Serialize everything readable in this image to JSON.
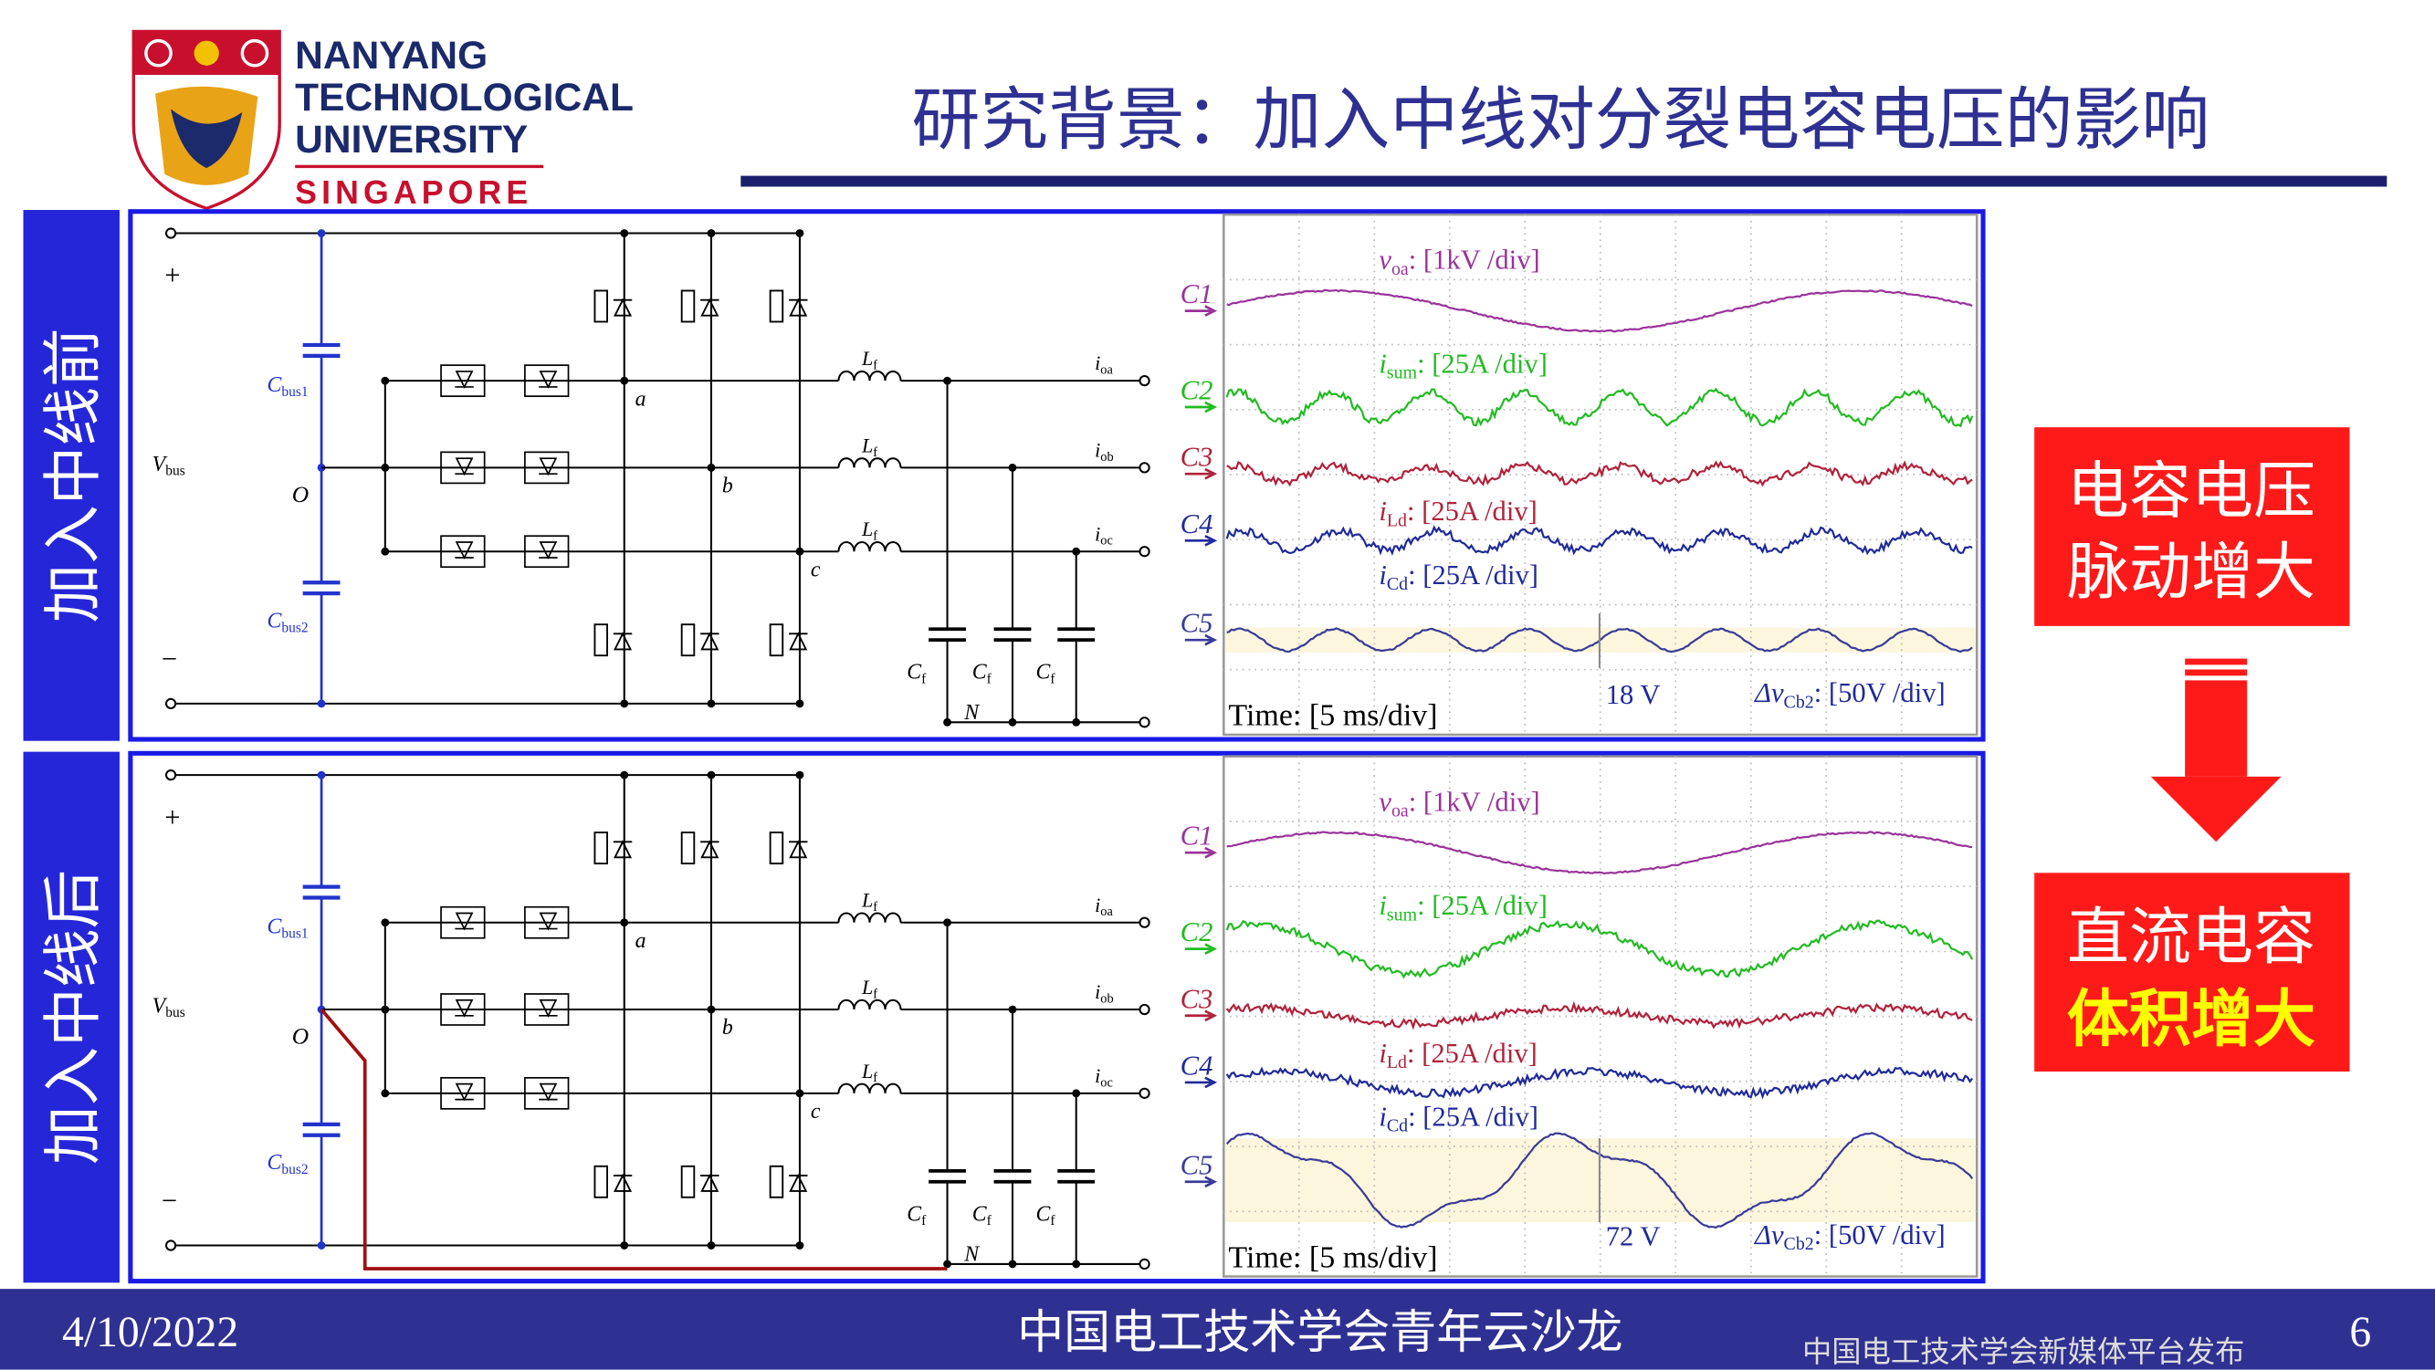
{
  "header": {
    "logo": [
      "NANYANG",
      "TECHNOLOGICAL",
      "UNIVERSITY"
    ],
    "logo_sub": "SINGAPORE",
    "title": "研究背景：加入中线对分裂电容电压的影响"
  },
  "panels": [
    {
      "label": "加入中线前",
      "circuit": {
        "plus": "+",
        "minus": "−",
        "vbus": {
          "main": "V",
          "sub": "bus"
        },
        "cbus1": {
          "main": "C",
          "sub": "bus1"
        },
        "cbus2": {
          "main": "C",
          "sub": "bus2"
        },
        "o": "O",
        "phases": [
          "a",
          "b",
          "c"
        ],
        "lf": [
          {
            "main": "L",
            "sub": "f"
          },
          {
            "main": "L",
            "sub": "f"
          },
          {
            "main": "L",
            "sub": "f"
          }
        ],
        "io": [
          {
            "main": "i",
            "sub": "oa"
          },
          {
            "main": "i",
            "sub": "ob"
          },
          {
            "main": "i",
            "sub": "oc"
          }
        ],
        "cf": [
          {
            "main": "C",
            "sub": "f"
          },
          {
            "main": "C",
            "sub": "f"
          },
          {
            "main": "C",
            "sub": "f"
          }
        ],
        "n": "N"
      },
      "scope": {
        "channels": [
          {
            "name": "C1",
            "label": {
              "main": "v",
              "sub": "oa",
              "rest": ": [1kV /div]"
            }
          },
          {
            "name": "C2",
            "label": {
              "main": "i",
              "sub": "sum",
              "rest": ": [25A /div]"
            }
          },
          {
            "name": "C3",
            "label": {
              "main": "i",
              "sub": "Ld",
              "rest": ": [25A /div]"
            }
          },
          {
            "name": "C4",
            "label": {
              "main": "i",
              "sub": "Cd",
              "rest": ": [25A /div]"
            }
          },
          {
            "name": "C5",
            "label": {
              "main": "Δv",
              "sub": "Cb2",
              "rest": ": [50V /div]"
            }
          }
        ],
        "time": "Time: [5 ms/div]",
        "ripple": "18 V"
      }
    },
    {
      "label": "加入中线后",
      "circuit": {
        "plus": "+",
        "minus": "−",
        "vbus": {
          "main": "V",
          "sub": "bus"
        },
        "cbus1": {
          "main": "C",
          "sub": "bus1"
        },
        "cbus2": {
          "main": "C",
          "sub": "bus2"
        },
        "o": "O",
        "phases": [
          "a",
          "b",
          "c"
        ],
        "lf": [
          {
            "main": "L",
            "sub": "f"
          },
          {
            "main": "L",
            "sub": "f"
          },
          {
            "main": "L",
            "sub": "f"
          }
        ],
        "io": [
          {
            "main": "i",
            "sub": "oa"
          },
          {
            "main": "i",
            "sub": "ob"
          },
          {
            "main": "i",
            "sub": "oc"
          }
        ],
        "cf": [
          {
            "main": "C",
            "sub": "f"
          },
          {
            "main": "C",
            "sub": "f"
          },
          {
            "main": "C",
            "sub": "f"
          }
        ],
        "n": "N"
      },
      "scope": {
        "channels": [
          {
            "name": "C1",
            "label": {
              "main": "v",
              "sub": "oa",
              "rest": ": [1kV /div]"
            }
          },
          {
            "name": "C2",
            "label": {
              "main": "i",
              "sub": "sum",
              "rest": ": [25A /div]"
            }
          },
          {
            "name": "C3",
            "label": {
              "main": "i",
              "sub": "Ld",
              "rest": ": [25A /div]"
            }
          },
          {
            "name": "C4",
            "label": {
              "main": "i",
              "sub": "Cd",
              "rest": ": [25A /div]"
            }
          },
          {
            "name": "C5",
            "label": {
              "main": "Δv",
              "sub": "Cb2",
              "rest": ": [50V /div]"
            }
          }
        ],
        "time": "Time: [5 ms/div]",
        "ripple": "72 V"
      }
    }
  ],
  "conclusion": {
    "box1": [
      "电容电压",
      "脉动增大"
    ],
    "box2": [
      "直流电容",
      "体积增大"
    ]
  },
  "footer": {
    "date": "4/10/2022",
    "event": "中国电工技术学会青年云沙龙",
    "source": "中国电工技术学会新媒体平台发布",
    "page": "6"
  }
}
